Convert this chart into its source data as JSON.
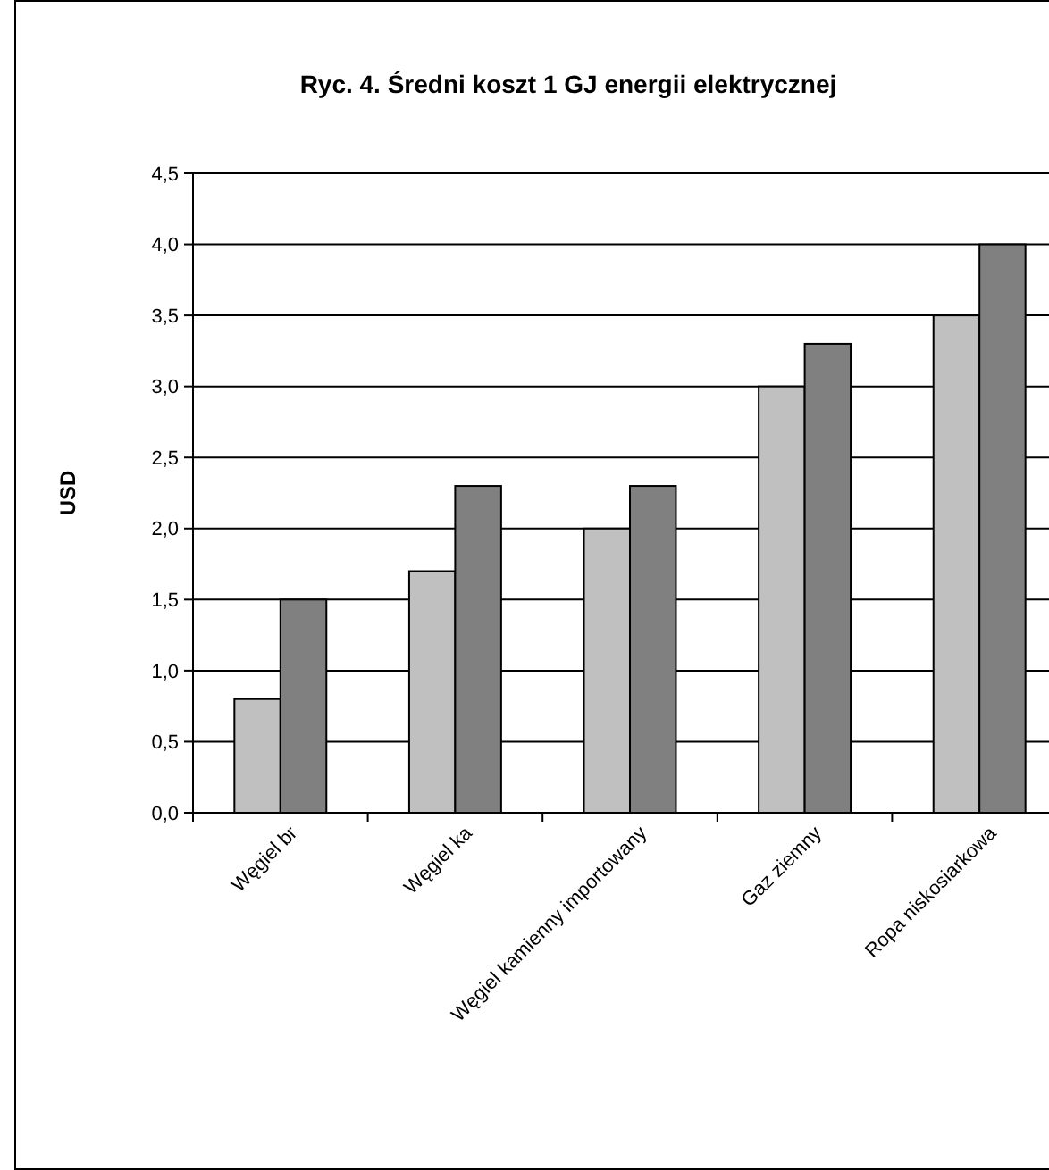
{
  "chart_data": {
    "type": "bar",
    "title": "Ryc. 4. Średni koszt 1 GJ energii elektrycznej",
    "ylabel": "USD",
    "categories": [
      "Węgiel br",
      "Węgiel ka",
      "Węgiel kamienny importowany",
      "Gaz ziemny",
      "Ropa niskosiarkowa"
    ],
    "series": [
      {
        "color": "#c0c0c0",
        "values": [
          0.8,
          1.7,
          2.0,
          3.0,
          3.5
        ]
      },
      {
        "color": "#808080",
        "values": [
          1.5,
          2.3,
          2.3,
          3.3,
          4.0
        ]
      }
    ],
    "ylim": [
      0,
      4.5
    ],
    "yticks": [
      {
        "value": 0,
        "label": "0,0"
      },
      {
        "value": 0.5,
        "label": "0,5"
      },
      {
        "value": 1,
        "label": "1,0"
      },
      {
        "value": 1.5,
        "label": "1,5"
      },
      {
        "value": 2,
        "label": "2,0"
      },
      {
        "value": 2.5,
        "label": "2,5"
      },
      {
        "value": 3,
        "label": "3,0"
      },
      {
        "value": 3.5,
        "label": "3,5"
      },
      {
        "value": 4,
        "label": "4,0"
      },
      {
        "value": 4.5,
        "label": "4,5"
      }
    ],
    "grid": "y"
  }
}
